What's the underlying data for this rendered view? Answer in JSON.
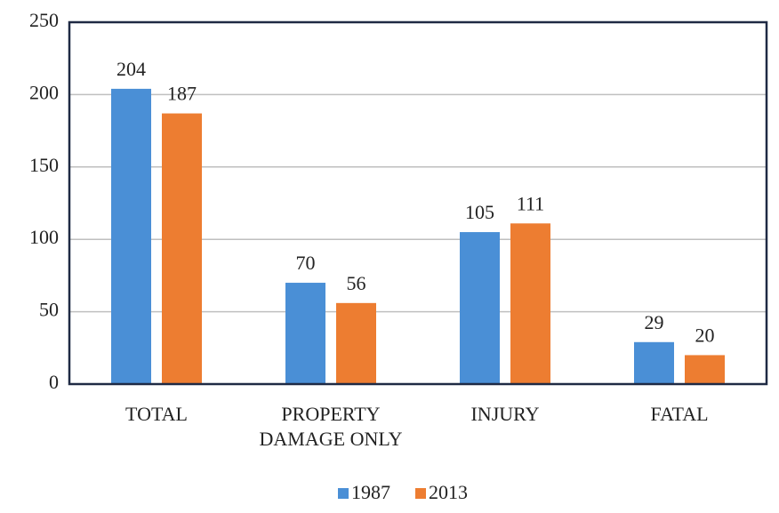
{
  "chart_data": {
    "type": "bar",
    "categories": [
      "TOTAL",
      "PROPERTY DAMAGE ONLY",
      "INJURY",
      "FATAL"
    ],
    "series": [
      {
        "name": "1987",
        "color": "#4a8fd6",
        "values": [
          204,
          70,
          105,
          29
        ]
      },
      {
        "name": "2013",
        "color": "#ed7d31",
        "values": [
          187,
          56,
          111,
          20
        ]
      }
    ],
    "ylim": [
      0,
      250
    ],
    "yticks": [
      0,
      50,
      100,
      150,
      200,
      250
    ],
    "grid": true,
    "legend": "bottom"
  }
}
